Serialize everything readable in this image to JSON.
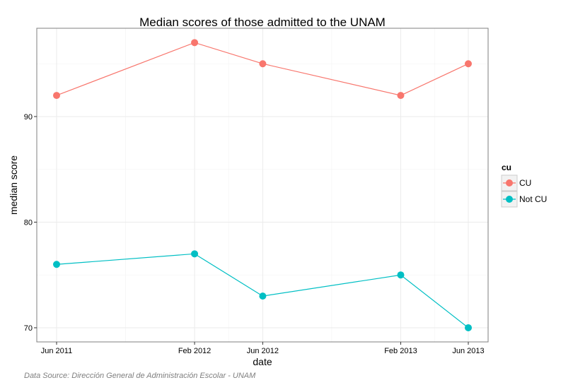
{
  "chart_data": {
    "type": "line",
    "title": "Median scores of those admitted to the UNAM",
    "xlabel": "date",
    "ylabel": "median score",
    "caption": "Data Source: Dirección General de Administración Escolar - UNAM",
    "x": [
      "2011-06-01",
      "2012-02-01",
      "2012-06-01",
      "2013-02-01",
      "2013-06-01"
    ],
    "x_tick_labels": [
      "Jun 2011",
      "Feb 2012",
      "Jun 2012",
      "Feb 2013",
      "Jun 2013"
    ],
    "y_ticks": [
      70,
      80,
      90
    ],
    "ylim": [
      68.66,
      98.36
    ],
    "grid": true,
    "legend": {
      "title": "cu",
      "position": "right"
    },
    "series": [
      {
        "name": "CU",
        "color": "#F8766D",
        "values": [
          92,
          97,
          95,
          92,
          95
        ]
      },
      {
        "name": "Not CU",
        "color": "#00BFC4",
        "values": [
          76,
          77,
          73,
          75,
          70
        ]
      }
    ]
  }
}
